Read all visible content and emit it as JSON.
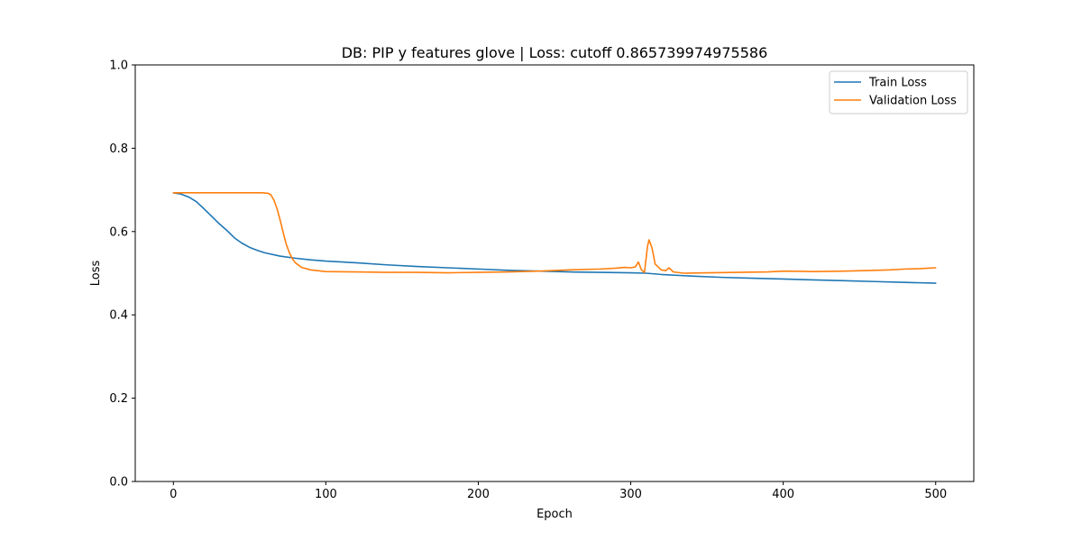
{
  "chart_data": {
    "type": "line",
    "title": "DB: PIP y features glove | Loss: cutoff 0.865739974975586",
    "xlabel": "Epoch",
    "ylabel": "Loss",
    "xlim": [
      -25,
      525
    ],
    "ylim": [
      0.0,
      1.0
    ],
    "x_ticks": [
      0,
      100,
      200,
      300,
      400,
      500
    ],
    "y_ticks": [
      0.0,
      0.2,
      0.4,
      0.6,
      0.8,
      1.0
    ],
    "x_tick_labels": [
      "0",
      "100",
      "200",
      "300",
      "400",
      "500"
    ],
    "y_tick_labels": [
      "0.0",
      "0.2",
      "0.4",
      "0.6",
      "0.8",
      "1.0"
    ],
    "grid": false,
    "legend_position": "top-right",
    "series": [
      {
        "name": "Train Loss",
        "color": "#1f77b4",
        "points": [
          [
            0,
            0.693
          ],
          [
            5,
            0.69
          ],
          [
            10,
            0.683
          ],
          [
            15,
            0.672
          ],
          [
            20,
            0.655
          ],
          [
            25,
            0.637
          ],
          [
            30,
            0.619
          ],
          [
            35,
            0.603
          ],
          [
            40,
            0.585
          ],
          [
            45,
            0.572
          ],
          [
            50,
            0.562
          ],
          [
            55,
            0.555
          ],
          [
            60,
            0.549
          ],
          [
            70,
            0.541
          ],
          [
            80,
            0.536
          ],
          [
            90,
            0.532
          ],
          [
            100,
            0.529
          ],
          [
            120,
            0.525
          ],
          [
            140,
            0.52
          ],
          [
            160,
            0.516
          ],
          [
            180,
            0.513
          ],
          [
            200,
            0.51
          ],
          [
            220,
            0.507
          ],
          [
            240,
            0.505
          ],
          [
            260,
            0.503
          ],
          [
            280,
            0.502
          ],
          [
            300,
            0.501
          ],
          [
            310,
            0.5
          ],
          [
            320,
            0.497
          ],
          [
            340,
            0.493
          ],
          [
            360,
            0.49
          ],
          [
            380,
            0.488
          ],
          [
            400,
            0.486
          ],
          [
            420,
            0.484
          ],
          [
            440,
            0.482
          ],
          [
            460,
            0.48
          ],
          [
            480,
            0.478
          ],
          [
            500,
            0.476
          ]
        ]
      },
      {
        "name": "Validation Loss",
        "color": "#ff7f0e",
        "points": [
          [
            0,
            0.693
          ],
          [
            10,
            0.693
          ],
          [
            20,
            0.693
          ],
          [
            30,
            0.693
          ],
          [
            40,
            0.693
          ],
          [
            50,
            0.693
          ],
          [
            58,
            0.693
          ],
          [
            62,
            0.692
          ],
          [
            64,
            0.688
          ],
          [
            66,
            0.675
          ],
          [
            68,
            0.655
          ],
          [
            70,
            0.628
          ],
          [
            72,
            0.598
          ],
          [
            74,
            0.57
          ],
          [
            76,
            0.55
          ],
          [
            78,
            0.535
          ],
          [
            80,
            0.525
          ],
          [
            84,
            0.514
          ],
          [
            90,
            0.508
          ],
          [
            100,
            0.504
          ],
          [
            120,
            0.503
          ],
          [
            140,
            0.502
          ],
          [
            160,
            0.502
          ],
          [
            180,
            0.501
          ],
          [
            200,
            0.502
          ],
          [
            220,
            0.503
          ],
          [
            240,
            0.505
          ],
          [
            260,
            0.508
          ],
          [
            280,
            0.51
          ],
          [
            290,
            0.512
          ],
          [
            296,
            0.514
          ],
          [
            300,
            0.513
          ],
          [
            303,
            0.515
          ],
          [
            305,
            0.527
          ],
          [
            307,
            0.508
          ],
          [
            309,
            0.502
          ],
          [
            311,
            0.565
          ],
          [
            312,
            0.58
          ],
          [
            314,
            0.56
          ],
          [
            316,
            0.522
          ],
          [
            320,
            0.508
          ],
          [
            323,
            0.506
          ],
          [
            325,
            0.513
          ],
          [
            328,
            0.503
          ],
          [
            335,
            0.5
          ],
          [
            350,
            0.501
          ],
          [
            370,
            0.502
          ],
          [
            390,
            0.503
          ],
          [
            400,
            0.505
          ],
          [
            420,
            0.504
          ],
          [
            440,
            0.505
          ],
          [
            460,
            0.507
          ],
          [
            470,
            0.508
          ],
          [
            480,
            0.51
          ],
          [
            490,
            0.511
          ],
          [
            495,
            0.512
          ],
          [
            500,
            0.513
          ]
        ]
      }
    ]
  }
}
